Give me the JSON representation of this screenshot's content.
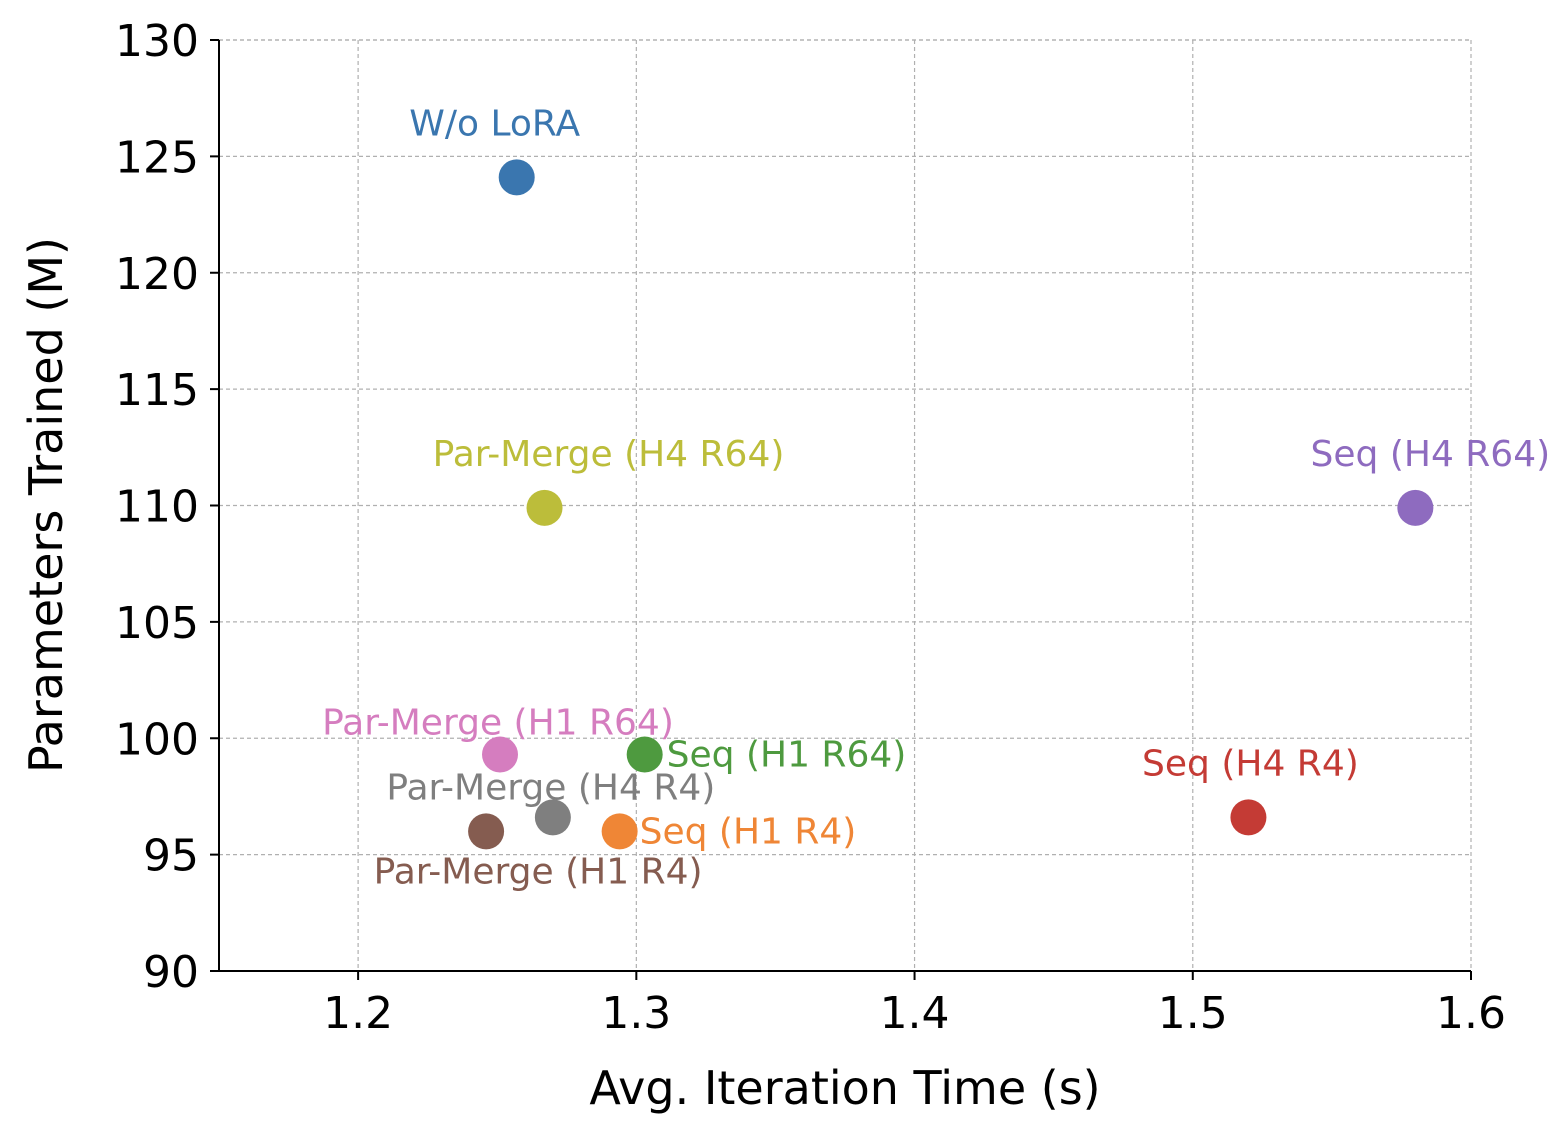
{
  "chart_data": {
    "type": "scatter",
    "xlabel": "Avg. Iteration Time (s)",
    "ylabel": "Parameters Trained (M)",
    "xlim": [
      1.15,
      1.6
    ],
    "ylim": [
      90,
      130
    ],
    "xticks": [
      1.2,
      1.3,
      1.4,
      1.5,
      1.6
    ],
    "xtick_labels": [
      "1.2",
      "1.3",
      "1.4",
      "1.5",
      "1.6"
    ],
    "yticks": [
      90,
      95,
      100,
      105,
      110,
      115,
      120,
      125,
      130
    ],
    "ytick_labels": [
      "90",
      "95",
      "100",
      "105",
      "110",
      "115",
      "120",
      "125",
      "130"
    ],
    "grid": true,
    "points": [
      {
        "label": "W/o LoRA",
        "x": 1.257,
        "y": 124.1,
        "color": "#3a76af",
        "label_pos": "above"
      },
      {
        "label": "Par-Merge (H4 R64)",
        "x": 1.267,
        "y": 109.9,
        "color": "#bcbd3a",
        "label_pos": "above"
      },
      {
        "label": "Seq (H4 R64)",
        "x": 1.58,
        "y": 109.9,
        "color": "#8e6bbf",
        "label_pos": "above"
      },
      {
        "label": "Par-Merge (H1 R64)",
        "x": 1.251,
        "y": 99.3,
        "color": "#d57dbf",
        "label_pos": "above"
      },
      {
        "label": "Seq (H1 R64)",
        "x": 1.303,
        "y": 99.3,
        "color": "#4e9a3f",
        "label_pos": "right"
      },
      {
        "label": "Par-Merge (H4 R4)",
        "x": 1.27,
        "y": 96.6,
        "color": "#7f7f7f",
        "label_pos": "above"
      },
      {
        "label": "Seq (H4 R4)",
        "x": 1.52,
        "y": 96.6,
        "color": "#c43b35",
        "label_pos": "above"
      },
      {
        "label": "Par-Merge (H1 R4)",
        "x": 1.246,
        "y": 96.0,
        "color": "#855c50",
        "label_pos": "below"
      },
      {
        "label": "Seq (H1 R4)",
        "x": 1.294,
        "y": 96.0,
        "color": "#ef8636",
        "label_pos": "right"
      }
    ]
  }
}
